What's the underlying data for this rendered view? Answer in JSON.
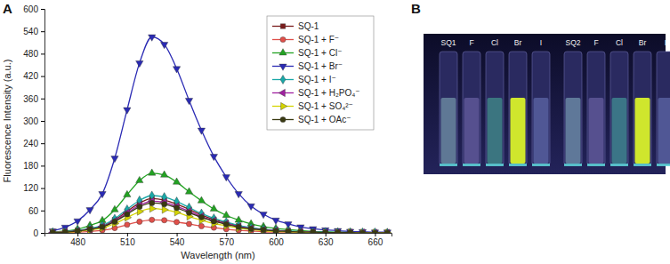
{
  "panel_labels": [
    "A",
    "B"
  ],
  "chart_data": {
    "type": "line",
    "x_label": "Wavelength (nm)",
    "y_label": "Fluorescence Intensity (a.u.)",
    "x": [
      465,
      472.5,
      480,
      487.5,
      495,
      502.5,
      510,
      517.5,
      525,
      532.5,
      540,
      547.5,
      555,
      562.5,
      570,
      577.5,
      585,
      592.5,
      600,
      607.5,
      615,
      622.5,
      630,
      637.5,
      645,
      652.5,
      660,
      667.5
    ],
    "xlim": [
      460,
      670
    ],
    "ylim": [
      0,
      600
    ],
    "xticks": [
      480,
      510,
      540,
      570,
      600,
      630,
      660
    ],
    "yticks": [
      0,
      60,
      120,
      180,
      240,
      300,
      360,
      420,
      480,
      540,
      600
    ],
    "grid": false,
    "legend": "upper right",
    "series": [
      {
        "name": "SQ-1",
        "color": "#7a1c1c",
        "marker": "square",
        "values": [
          1,
          3,
          6,
          11,
          18,
          35,
          58,
          80,
          92,
          88,
          77,
          63,
          48,
          36,
          27,
          19,
          13,
          9,
          6,
          4,
          3,
          2,
          1,
          1,
          1,
          1,
          0,
          0
        ]
      },
      {
        "name": "SQ-1 + F⁻",
        "color": "#e0504a",
        "marker": "circle",
        "values": [
          0,
          1,
          2,
          4,
          7,
          13,
          22,
          30,
          35,
          34,
          29,
          24,
          18,
          14,
          10,
          7,
          5,
          3,
          2,
          2,
          1,
          1,
          1,
          0,
          0,
          0,
          0,
          0
        ]
      },
      {
        "name": "SQ-1 + Cl⁻",
        "color": "#22a322",
        "marker": "triangle-up",
        "values": [
          2,
          5,
          10,
          20,
          33,
          62,
          102,
          140,
          160,
          155,
          136,
          110,
          86,
          64,
          47,
          34,
          24,
          17,
          12,
          9,
          6,
          4,
          3,
          2,
          2,
          1,
          1,
          1
        ]
      },
      {
        "name": "SQ-1 + Br⁻",
        "color": "#2a2ab4",
        "marker": "triangle-down",
        "values": [
          5,
          15,
          32,
          62,
          105,
          200,
          330,
          455,
          525,
          505,
          440,
          355,
          275,
          205,
          150,
          105,
          72,
          50,
          34,
          24,
          16,
          11,
          8,
          6,
          4,
          3,
          2,
          2
        ]
      },
      {
        "name": "SQ-1 + I⁻",
        "color": "#1aa8a8",
        "marker": "diamond",
        "values": [
          1,
          3,
          6,
          12,
          20,
          38,
          63,
          87,
          100,
          96,
          84,
          68,
          52,
          39,
          29,
          20,
          14,
          10,
          7,
          5,
          3,
          2,
          2,
          1,
          1,
          1,
          1,
          0
        ]
      },
      {
        "name": "SQ-1 + H₂PO₄⁻",
        "color": "#a020a0",
        "marker": "triangle-left",
        "values": [
          1,
          3,
          5,
          10,
          17,
          32,
          54,
          74,
          85,
          82,
          71,
          58,
          44,
          33,
          25,
          17,
          12,
          8,
          6,
          4,
          3,
          2,
          1,
          1,
          1,
          1,
          0,
          0
        ]
      },
      {
        "name": "SQ-1 + SO₄²⁻",
        "color": "#d4d400",
        "marker": "triangle-right",
        "values": [
          1,
          2,
          4,
          8,
          13,
          25,
          41,
          57,
          65,
          62,
          55,
          44,
          34,
          25,
          19,
          13,
          9,
          6,
          4,
          3,
          2,
          1,
          1,
          1,
          1,
          0,
          0,
          0
        ]
      },
      {
        "name": "SQ-1 + OAc⁻",
        "color": "#3a3a12",
        "marker": "circle",
        "values": [
          1,
          2,
          5,
          10,
          16,
          30,
          50,
          70,
          80,
          77,
          67,
          54,
          42,
          31,
          23,
          16,
          11,
          8,
          5,
          4,
          2,
          2,
          1,
          1,
          1,
          0,
          0,
          0
        ]
      }
    ]
  },
  "photo": {
    "vial_labels": [
      "SQ1",
      "F",
      "Cl",
      "Br",
      "I",
      "SQ2",
      "F",
      "Cl",
      "Br",
      "I"
    ]
  }
}
